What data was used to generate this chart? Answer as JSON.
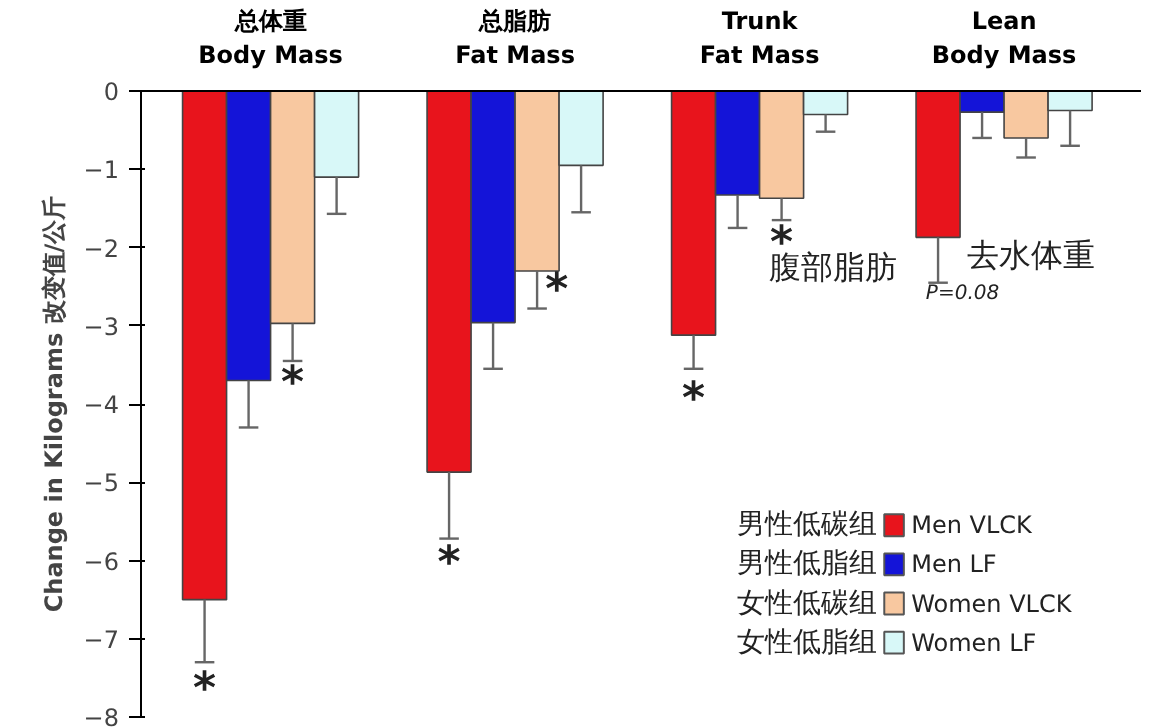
{
  "chart_data": {
    "type": "bar",
    "categories": [
      "总体重\nBody Mass",
      "总脂肪\nFat Mass",
      "Trunk\nFat Mass",
      "Lean\nBody Mass"
    ],
    "ylabel": "Change in Kilograms 改变值/公斤",
    "ylim": [
      -8,
      0
    ],
    "yticks": [
      0,
      -1,
      -2,
      -3,
      -4,
      -5,
      -6,
      -7,
      -8
    ],
    "series": [
      {
        "name": "Men VLCK",
        "color": "#e8141c",
        "values": [
          -6.5,
          -4.87,
          -3.12,
          -1.87
        ],
        "errors": [
          [
            -7.3,
            -6.5
          ],
          [
            -5.72,
            -4.87
          ],
          [
            -3.55,
            -3.12
          ],
          [
            -2.45,
            -1.87
          ]
        ]
      },
      {
        "name": "Men LF",
        "color": "#1414d8",
        "values": [
          -3.7,
          -2.96,
          -1.33,
          -0.27
        ],
        "errors": [
          [
            -4.3,
            -3.7
          ],
          [
            -3.55,
            -2.96
          ],
          [
            -1.75,
            -1.33
          ],
          [
            -0.6,
            -0.27
          ]
        ]
      },
      {
        "name": "Women VLCK",
        "color": "#f8c8a0",
        "values": [
          -2.97,
          -2.3,
          -1.37,
          -0.6
        ],
        "errors": [
          [
            -3.45,
            -2.97
          ],
          [
            -2.78,
            -2.3
          ],
          [
            -1.65,
            -1.37
          ],
          [
            -0.85,
            -0.6
          ]
        ]
      },
      {
        "name": "Women LF",
        "color": "#d8f8f8",
        "values": [
          -1.1,
          -0.95,
          -0.3,
          -0.25
        ],
        "errors": [
          [
            -1.57,
            -1.1
          ],
          [
            -1.55,
            -0.95
          ],
          [
            -0.52,
            -0.3
          ],
          [
            -0.7,
            -0.25
          ]
        ]
      }
    ],
    "annotations": [
      "*",
      "*",
      "*",
      "*",
      "*",
      "*",
      "腹部脂肪",
      "去水体重",
      "P=0.08",
      "男性低碳组",
      "男性低脂组",
      "女性低碳组",
      "女性低脂组"
    ],
    "legend": "bottom right"
  }
}
